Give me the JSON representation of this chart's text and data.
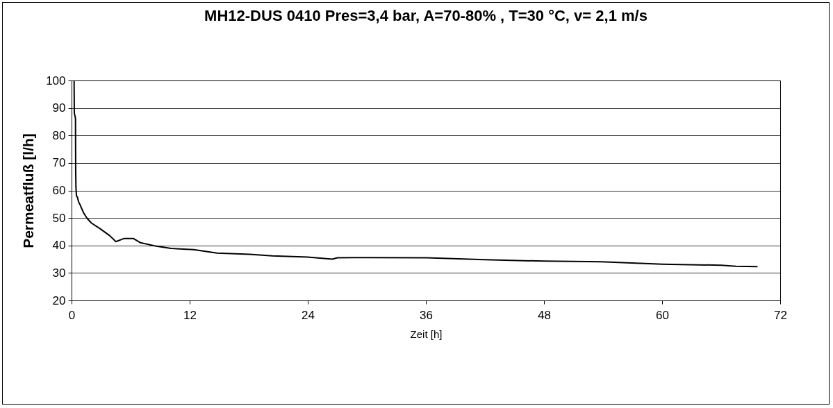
{
  "chart_data": {
    "type": "line",
    "title": "MH12-DUS 0410 Pres=3,4 bar, A=70-80% , T=30 °C, v= 2,1 m/s",
    "xlabel": "Zeit [h]",
    "ylabel": "Permeatfluß [l/h]",
    "series": [
      {
        "color": "#000000",
        "x": [
          0.26,
          0.28,
          0.36,
          0.4,
          0.42,
          0.45,
          0.5,
          0.6,
          0.7,
          0.85,
          1.2,
          1.57,
          2.0,
          2.9,
          3.9,
          4.5,
          5.3,
          6.3,
          7.0,
          8.4,
          10.1,
          12.4,
          14.8,
          18.1,
          20.4,
          24,
          26.5,
          27,
          30,
          36.1,
          42,
          48,
          53.8,
          60,
          66,
          67.5,
          69.7
        ],
        "values": [
          100,
          88,
          87,
          86,
          67,
          60.9,
          58,
          57.5,
          56,
          54.9,
          52,
          49.9,
          48.2,
          46.1,
          43.5,
          41.4,
          42.5,
          42.5,
          41,
          39.9,
          38.9,
          38.5,
          37.2,
          36.8,
          36.2,
          35.8,
          35,
          35.5,
          35.6,
          35.5,
          34.8,
          34.3,
          34.1,
          33.2,
          32.8,
          32.4,
          32.3
        ]
      }
    ],
    "xlim": [
      0,
      72
    ],
    "xticks": [
      0,
      12,
      24,
      36,
      48,
      60,
      72
    ],
    "ylim": [
      20,
      100
    ],
    "yticks": [
      20,
      30,
      40,
      50,
      60,
      70,
      80,
      90,
      100
    ],
    "grid": "y",
    "line_style": "solid"
  }
}
